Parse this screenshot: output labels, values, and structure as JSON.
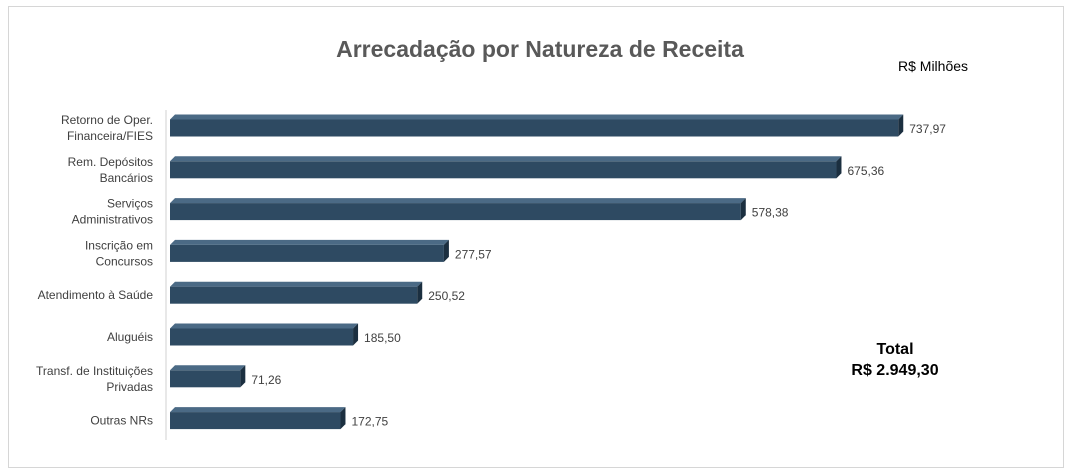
{
  "chart_data": {
    "type": "bar",
    "orientation": "horizontal",
    "title": "Arrecadação por Natureza de Receita",
    "unit_label": "R$ Milhões",
    "categories": [
      [
        "Retorno de Oper.",
        "Financeira/FIES"
      ],
      [
        "Rem. Depósitos",
        "Bancários"
      ],
      [
        "Serviços",
        "Administrativos"
      ],
      [
        "Inscrição em",
        "Concursos"
      ],
      [
        "Atendimento à Saúde"
      ],
      [
        "Aluguéis"
      ],
      [
        "Transf. de Instituições",
        "Privadas"
      ],
      [
        "Outras NRs"
      ]
    ],
    "values": [
      737.97,
      675.36,
      578.38,
      277.57,
      250.52,
      185.5,
      71.26,
      172.75
    ],
    "value_labels": [
      "737,97",
      "675,36",
      "578,38",
      "277,57",
      "250,52",
      "185,50",
      "71,26",
      "172,75"
    ],
    "xlim": [
      0,
      760
    ],
    "grid": false,
    "legend": "none",
    "bar_color": "#2e4a62",
    "bar_top_color": "#4b6a85",
    "bar_side_color": "#1b2f40"
  },
  "total": {
    "label": "Total",
    "value": "R$ 2.949,30"
  }
}
